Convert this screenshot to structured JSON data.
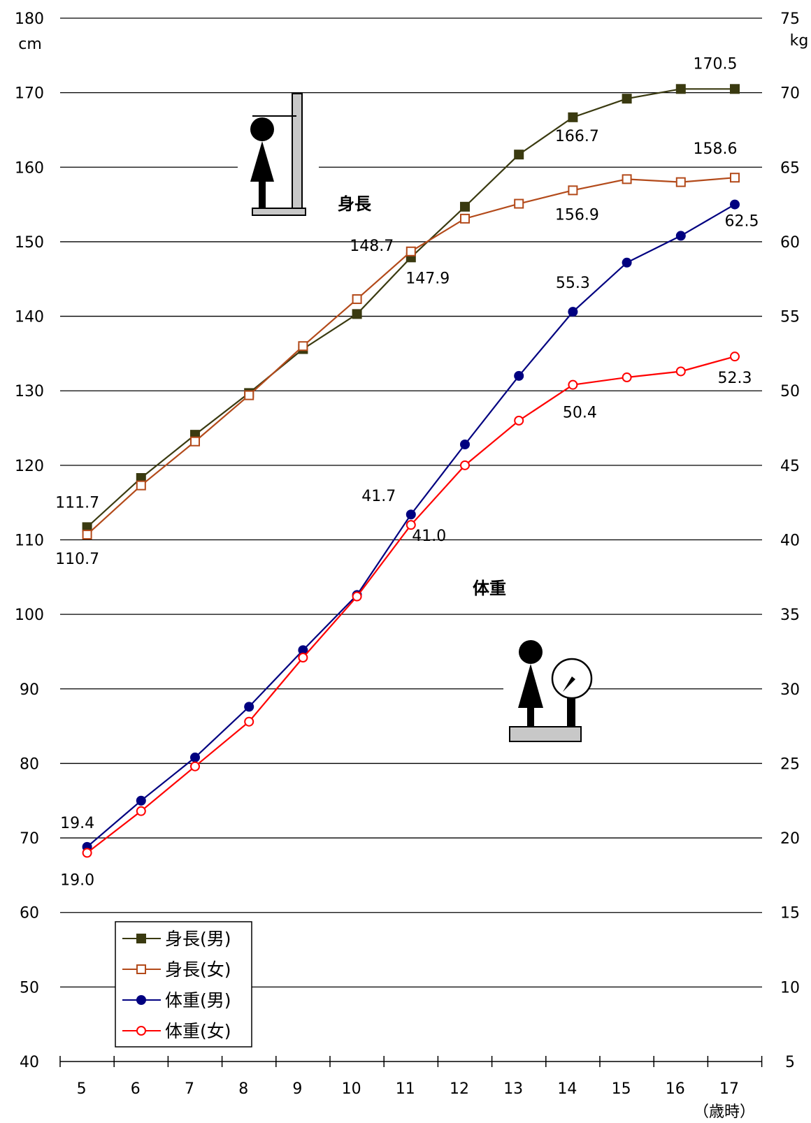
{
  "chart_data": {
    "type": "line",
    "x_categories": [
      "5",
      "6",
      "7",
      "8",
      "9",
      "10",
      "11",
      "12",
      "13",
      "14",
      "15",
      "16",
      "17"
    ],
    "x_unit": "（歳時）",
    "left_axis": {
      "unit": "cm",
      "range": [
        40,
        180
      ],
      "ticks": [
        "40",
        "50",
        "60",
        "70",
        "80",
        "90",
        "100",
        "110",
        "120",
        "130",
        "140",
        "150",
        "160",
        "170",
        "180"
      ]
    },
    "right_axis": {
      "unit": "kg",
      "range": [
        5,
        75
      ],
      "ticks": [
        "5",
        "10",
        "15",
        "20",
        "25",
        "30",
        "35",
        "40",
        "45",
        "50",
        "55",
        "60",
        "65",
        "70",
        "75"
      ]
    },
    "grid": true,
    "legend_position": "bottom-left",
    "annotations": {
      "height": "身長",
      "weight": "体重"
    },
    "series": [
      {
        "name": "身長(男)",
        "axis": "left",
        "color": "#3a3a10",
        "marker": "filled-square",
        "values": [
          111.7,
          118.3,
          124.1,
          129.7,
          135.6,
          140.3,
          147.9,
          154.7,
          161.7,
          166.7,
          169.2,
          170.5,
          170.5
        ]
      },
      {
        "name": "身長(女)",
        "axis": "left",
        "color": "#b34a1a",
        "marker": "open-square",
        "values": [
          110.7,
          117.3,
          123.2,
          129.4,
          136.0,
          142.3,
          148.7,
          153.1,
          155.1,
          156.9,
          158.4,
          158.0,
          158.6
        ]
      },
      {
        "name": "体重(男)",
        "axis": "right",
        "color": "#000080",
        "marker": "filled-circle",
        "values": [
          19.4,
          22.5,
          25.4,
          28.8,
          32.6,
          36.3,
          41.7,
          46.4,
          51.0,
          55.3,
          58.6,
          60.4,
          62.5
        ]
      },
      {
        "name": "体重(女)",
        "axis": "right",
        "color": "#ff0000",
        "marker": "open-circle",
        "values": [
          19.0,
          21.8,
          24.8,
          27.8,
          32.1,
          36.2,
          41.0,
          45.0,
          48.0,
          50.4,
          50.9,
          51.3,
          52.3
        ]
      }
    ],
    "data_labels": [
      {
        "series": 0,
        "index": 0,
        "text": "111.7"
      },
      {
        "series": 1,
        "index": 0,
        "text": "110.7"
      },
      {
        "series": 1,
        "index": 6,
        "text": "148.7"
      },
      {
        "series": 0,
        "index": 6,
        "text": "147.9"
      },
      {
        "series": 0,
        "index": 9,
        "text": "166.7"
      },
      {
        "series": 1,
        "index": 9,
        "text": "156.9"
      },
      {
        "series": 0,
        "index": 12,
        "text": "170.5"
      },
      {
        "series": 1,
        "index": 12,
        "text": "158.6"
      },
      {
        "series": 2,
        "index": 0,
        "text": "19.4"
      },
      {
        "series": 3,
        "index": 0,
        "text": "19.0"
      },
      {
        "series": 2,
        "index": 6,
        "text": "41.7"
      },
      {
        "series": 3,
        "index": 6,
        "text": "41.0"
      },
      {
        "series": 2,
        "index": 9,
        "text": "55.3"
      },
      {
        "series": 3,
        "index": 9,
        "text": "50.4"
      },
      {
        "series": 2,
        "index": 12,
        "text": "62.5"
      },
      {
        "series": 3,
        "index": 12,
        "text": "52.3"
      }
    ]
  }
}
